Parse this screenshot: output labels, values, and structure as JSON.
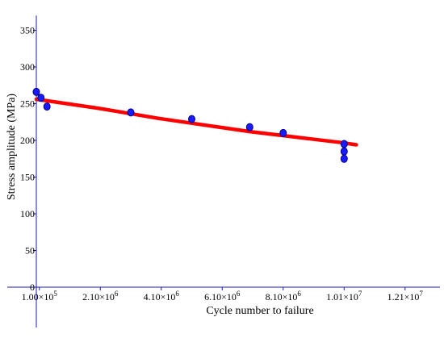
{
  "chart_data": {
    "type": "scatter",
    "xlabel": "Cycle number to failure",
    "ylabel": "Stress amplitude (MPa)",
    "xlim": [
      -50000,
      13500000
    ],
    "ylim": [
      -55000,
      370
    ],
    "ylim_display": [
      -55,
      370
    ],
    "grid": false,
    "legend": "none",
    "x_ticks": [
      {
        "value": 100000,
        "mantissa": "1.00",
        "exp": "5"
      },
      {
        "value": 2100000,
        "mantissa": "2.10",
        "exp": "6"
      },
      {
        "value": 4100000,
        "mantissa": "4.10",
        "exp": "6"
      },
      {
        "value": 6100000,
        "mantissa": "6.10",
        "exp": "6"
      },
      {
        "value": 8100000,
        "mantissa": "8.10",
        "exp": "6"
      },
      {
        "value": 10100000,
        "mantissa": "1.01",
        "exp": "7"
      },
      {
        "value": 12100000,
        "mantissa": "1.21",
        "exp": "7"
      }
    ],
    "y_ticks": [
      {
        "value": 0,
        "label": "0"
      },
      {
        "value": 50,
        "label": "50"
      },
      {
        "value": 100,
        "label": "100"
      },
      {
        "value": 150,
        "label": "150"
      },
      {
        "value": 200,
        "label": "200"
      },
      {
        "value": 250,
        "label": "250"
      },
      {
        "value": 300,
        "label": "300"
      },
      {
        "value": 350,
        "label": "350"
      }
    ],
    "points": {
      "color": "#1a1aff",
      "edge_color": "#000080",
      "x": [
        0,
        150000,
        350000,
        3100000,
        5100000,
        7000000,
        8100000,
        10100000,
        10100000,
        10100000
      ],
      "y": [
        266,
        258,
        246,
        238,
        229,
        218,
        210,
        195,
        185,
        175
      ]
    },
    "fit_curve": {
      "color": "#ff0000",
      "x": [
        0,
        1000000,
        2000000,
        3000000,
        4000000,
        5000000,
        6000000,
        7000000,
        8000000,
        9000000,
        10000000,
        10500000
      ],
      "y": [
        256,
        250,
        244,
        237,
        230,
        224,
        218,
        212,
        207,
        202,
        197,
        194
      ]
    }
  }
}
